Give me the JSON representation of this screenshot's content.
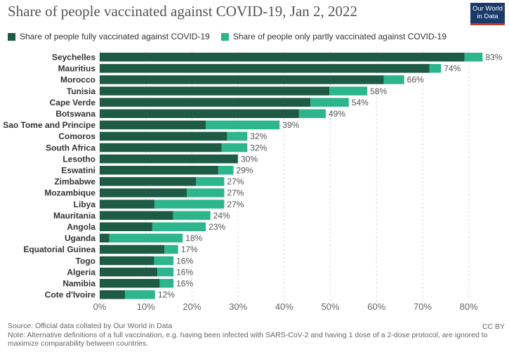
{
  "title": "Share of people vaccinated against COVID-19, Jan 2, 2022",
  "logo": {
    "line1": "Our World",
    "line2": "in Data"
  },
  "colors": {
    "full": "#1e5b45",
    "partial": "#2db58c",
    "grid": "#dddddd",
    "text": "#333333",
    "axis_text": "#666666",
    "value_text": "#555555"
  },
  "legend": [
    {
      "label": "Share of people fully vaccinated against COVID-19",
      "color": "#1e5b45"
    },
    {
      "label": "Share of people only partly vaccinated against COVID-19",
      "color": "#2db58c"
    }
  ],
  "chart_data": {
    "type": "bar",
    "orientation": "horizontal",
    "stacked": true,
    "xlim": [
      0,
      83
    ],
    "x_ticks": [
      "0%",
      "10%",
      "20%",
      "30%",
      "40%",
      "50%",
      "60%",
      "70%",
      "80%"
    ],
    "x_tick_values": [
      0,
      10,
      20,
      30,
      40,
      50,
      60,
      70,
      80
    ],
    "grid": true,
    "legend_position": "top",
    "categories": [
      "Seychelles",
      "Mauritius",
      "Morocco",
      "Tunisia",
      "Cape Verde",
      "Botswana",
      "Sao Tome and Principe",
      "Comoros",
      "South Africa",
      "Lesotho",
      "Eswatini",
      "Zimbabwe",
      "Mozambique",
      "Libya",
      "Mauritania",
      "Angola",
      "Uganda",
      "Equatorial Guinea",
      "Togo",
      "Algeria",
      "Namibia",
      "Cote d'Ivoire"
    ],
    "series": [
      {
        "name": "Share of people fully vaccinated against COVID-19",
        "values": [
          79.1,
          71.5,
          61.6,
          49.8,
          45.7,
          43.2,
          23.0,
          27.6,
          26.4,
          29.9,
          25.7,
          20.9,
          18.9,
          11.9,
          15.9,
          11.4,
          2.1,
          14.0,
          11.8,
          12.5,
          13.0,
          5.5
        ]
      },
      {
        "name": "Share of people only partly vaccinated against COVID-19",
        "values": [
          3.9,
          2.5,
          4.4,
          8.2,
          8.3,
          5.8,
          16.0,
          4.4,
          5.6,
          0.1,
          3.3,
          6.1,
          8.1,
          15.1,
          8.1,
          11.6,
          15.9,
          3.0,
          4.2,
          3.5,
          3.0,
          6.5
        ]
      }
    ],
    "value_labels": [
      "83%",
      "74%",
      "66%",
      "58%",
      "54%",
      "49%",
      "39%",
      "32%",
      "32%",
      "30%",
      "29%",
      "27%",
      "27%",
      "27%",
      "24%",
      "23%",
      "18%",
      "17%",
      "16%",
      "16%",
      "16%",
      "12%"
    ]
  },
  "footer": {
    "source": "Source: Official data collated by Our World in Data",
    "note": "Note: Alternative definitions of a full vaccination, e.g. having been infected with SARS-CoV-2 and having 1 dose of a 2-dose protocol, are ignored to maximize comparability between countries.",
    "license": "CC BY"
  }
}
